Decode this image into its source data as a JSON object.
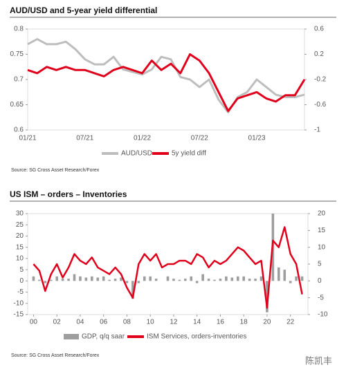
{
  "chart_data": [
    {
      "type": "line",
      "title": "AUD/USD and 5-year yield differential",
      "source": "Source: SG Cross Asset Research/Forex",
      "categories": [
        "01/21",
        null,
        null,
        null,
        null,
        null,
        "07/21",
        null,
        null,
        null,
        null,
        null,
        "01/22",
        null,
        null,
        null,
        null,
        null,
        "07/22",
        null,
        null,
        null,
        null,
        null,
        "01/23",
        null,
        null,
        null,
        null,
        null
      ],
      "ylim": [
        0.6,
        0.8
      ],
      "yticks": [
        0.6,
        0.65,
        0.7,
        0.75,
        0.8
      ],
      "y2lim": [
        -1,
        0.6
      ],
      "y2ticks": [
        -1,
        -0.6,
        -0.2,
        0.2,
        0.6
      ],
      "series": [
        {
          "name": "AUD/USD",
          "color": "#bdbdbd",
          "axis": "y",
          "values": [
            0.77,
            0.78,
            0.77,
            0.77,
            0.775,
            0.76,
            0.74,
            0.73,
            0.73,
            0.745,
            0.72,
            0.715,
            0.71,
            0.72,
            0.745,
            0.74,
            0.705,
            0.7,
            0.685,
            0.7,
            0.66,
            0.635,
            0.665,
            0.675,
            0.7,
            0.685,
            0.67,
            0.665,
            0.665,
            0.67
          ]
        },
        {
          "name": "5y yield diff",
          "color": "#e0001b",
          "axis": "y2",
          "values": [
            -0.05,
            -0.1,
            0.0,
            -0.05,
            0.0,
            -0.05,
            -0.05,
            -0.1,
            -0.15,
            -0.05,
            0.0,
            -0.05,
            -0.1,
            0.1,
            -0.05,
            0.05,
            -0.1,
            0.2,
            0.1,
            -0.1,
            -0.4,
            -0.7,
            -0.5,
            -0.45,
            -0.4,
            -0.5,
            -0.55,
            -0.45,
            -0.45,
            -0.2
          ]
        }
      ]
    },
    {
      "type": "combo",
      "title": "US ISM – orders – Inventories",
      "source": "Source: SG Cross Asset Research/Forex",
      "x": [
        0,
        0.5,
        1,
        1.5,
        2,
        2.5,
        3,
        3.5,
        4,
        4.5,
        5,
        5.5,
        6,
        6.5,
        7,
        7.5,
        8,
        8.5,
        9,
        9.5,
        10,
        10.5,
        11,
        11.5,
        12,
        12.5,
        13,
        13.5,
        14,
        14.5,
        15,
        15.5,
        16,
        16.5,
        17,
        17.5,
        18,
        18.5,
        19,
        19.5,
        20,
        20.5,
        21,
        21.5,
        22,
        22.5,
        23
      ],
      "xlim": [
        -0.5,
        23.5
      ],
      "xticks": [
        {
          "value": 0,
          "label": "00"
        },
        {
          "value": 2,
          "label": "02"
        },
        {
          "value": 4,
          "label": "04"
        },
        {
          "value": 6,
          "label": "06"
        },
        {
          "value": 8,
          "label": "08"
        },
        {
          "value": 10,
          "label": "10"
        },
        {
          "value": 12,
          "label": "12"
        },
        {
          "value": 14,
          "label": "14"
        },
        {
          "value": 16,
          "label": "16"
        },
        {
          "value": 18,
          "label": "18"
        },
        {
          "value": 20,
          "label": "20"
        },
        {
          "value": 22,
          "label": "22"
        }
      ],
      "ylim": [
        -15,
        30
      ],
      "yticks": [
        -15,
        -10,
        -5,
        0,
        5,
        10,
        15,
        20,
        25,
        30
      ],
      "y2lim": [
        -10,
        20
      ],
      "y2ticks": [
        -10,
        -5,
        0,
        5,
        10,
        15,
        20
      ],
      "series": [
        {
          "name": "GDP, q/q saar",
          "color": "#9e9e9e",
          "type": "bar",
          "axis": "y",
          "values": [
            2,
            0.5,
            -1,
            0.5,
            2,
            1,
            1,
            3,
            2,
            1.5,
            2,
            1.5,
            2,
            0.5,
            1,
            1.5,
            -1,
            -8,
            -1,
            2,
            2,
            1,
            0,
            2,
            1,
            0.5,
            1,
            2,
            -1,
            3,
            1,
            0.5,
            1,
            2,
            1.5,
            2,
            2,
            1,
            1,
            2,
            -14,
            30,
            6,
            5,
            -1,
            2,
            2
          ]
        },
        {
          "name": "ISM Services, orders-inventories",
          "color": "#e0001b",
          "type": "line",
          "axis": "y2",
          "values": [
            5,
            3,
            -3,
            2,
            5,
            1,
            4,
            8,
            6,
            5,
            7,
            4,
            3,
            2,
            4,
            2,
            -2,
            -5,
            5,
            8,
            6,
            8,
            4,
            5,
            5,
            6,
            6,
            5,
            8,
            7,
            4,
            6,
            5,
            6,
            8,
            10,
            9,
            7,
            5,
            6,
            -8,
            12,
            10,
            16,
            8,
            5,
            -4
          ]
        }
      ]
    }
  ],
  "watermark": "陈凯丰"
}
